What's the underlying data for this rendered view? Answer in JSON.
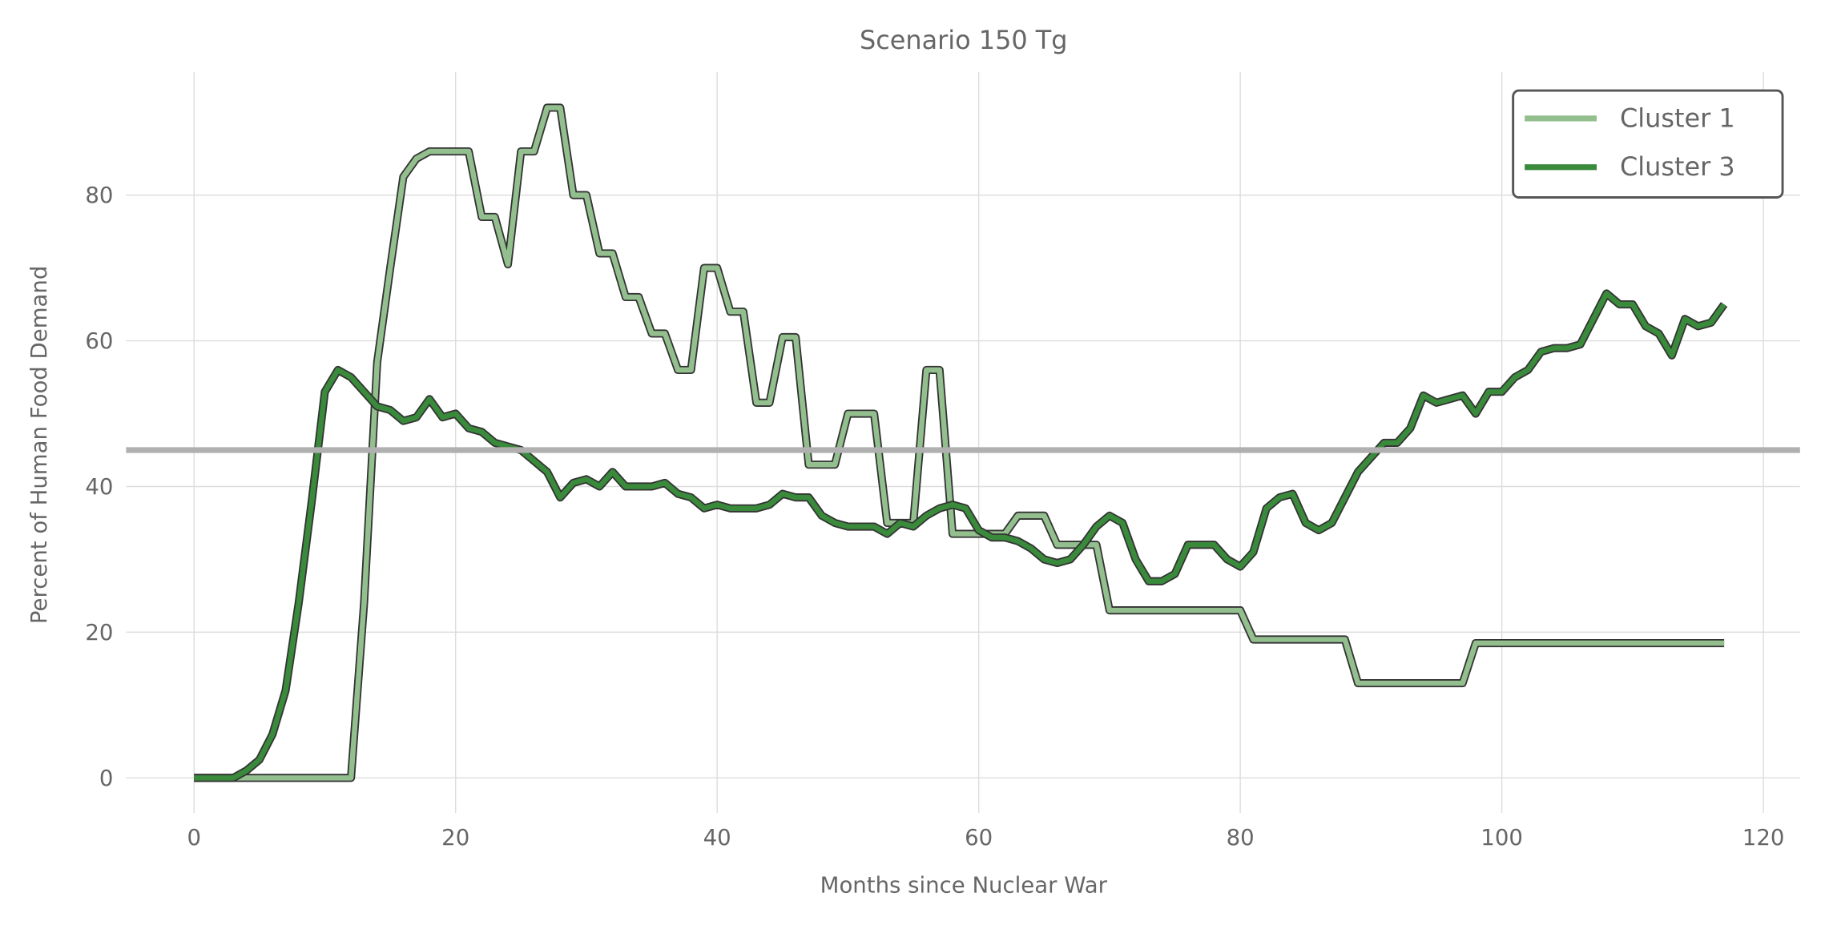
{
  "chart_data": {
    "type": "line",
    "title": "Scenario 150 Tg",
    "x_label": "Months since Nuclear War",
    "y_label": "Percent of Human Food Demand",
    "x": [
      0,
      1,
      2,
      3,
      4,
      5,
      6,
      7,
      8,
      9,
      10,
      11,
      12,
      13,
      14,
      15,
      16,
      17,
      18,
      19,
      20,
      21,
      22,
      23,
      24,
      25,
      26,
      27,
      28,
      29,
      30,
      31,
      32,
      33,
      34,
      35,
      36,
      37,
      38,
      39,
      40,
      41,
      42,
      43,
      44,
      45,
      46,
      47,
      48,
      49,
      50,
      51,
      52,
      53,
      54,
      55,
      56,
      57,
      58,
      59,
      60,
      61,
      62,
      63,
      64,
      65,
      66,
      67,
      68,
      69,
      70,
      71,
      72,
      73,
      74,
      75,
      76,
      77,
      78,
      79,
      80,
      81,
      82,
      83,
      84,
      85,
      86,
      87,
      88,
      89,
      90,
      91,
      92,
      93,
      94,
      95,
      96,
      97,
      98,
      99,
      100,
      101,
      102,
      103,
      104,
      105,
      106,
      107,
      108,
      109,
      110,
      111,
      112,
      113,
      114,
      115,
      116,
      117
    ],
    "series": [
      {
        "name": "Cluster 1",
        "color": "#93bf8e",
        "values": [
          0,
          0,
          0,
          0,
          0,
          0,
          0,
          0,
          0,
          0,
          0,
          0,
          0,
          24,
          57,
          70,
          82.5,
          85,
          86,
          86,
          86,
          86,
          77,
          77,
          70.5,
          86,
          86,
          92,
          92,
          80,
          80,
          72,
          72,
          66,
          66,
          61,
          61,
          56,
          56,
          70,
          70,
          64,
          64,
          51.5,
          51.5,
          60.5,
          60.5,
          43,
          43,
          43,
          50,
          50,
          50,
          35,
          35,
          35,
          56,
          56,
          33.5,
          33.5,
          33.5,
          33.5,
          33.5,
          36,
          36,
          36,
          32,
          32,
          32,
          32,
          23,
          23,
          23,
          23,
          23,
          23,
          23,
          23,
          23,
          23,
          23,
          19,
          19,
          19,
          19,
          19,
          19,
          19,
          19,
          13,
          13,
          13,
          13,
          13,
          13,
          13,
          13,
          13,
          18.5,
          18.5,
          18.5,
          18.5,
          18.5,
          18.5,
          18.5,
          18.5,
          18.5,
          18.5,
          18.5,
          18.5,
          18.5,
          18.5,
          18.5,
          18.5,
          18.5,
          18.5,
          18.5,
          18.5
        ]
      },
      {
        "name": "Cluster 3",
        "color": "#3a8a3c",
        "values": [
          0,
          0,
          0,
          0,
          1,
          2.5,
          6,
          12,
          24,
          38,
          53,
          56,
          55,
          53,
          51,
          50.5,
          49,
          49.5,
          52,
          49.5,
          50,
          48,
          47.5,
          46,
          45.5,
          45,
          43.5,
          42,
          38.5,
          40.5,
          41,
          40,
          42,
          40,
          40,
          40,
          40.5,
          39,
          38.5,
          37,
          37.5,
          37,
          37,
          37,
          37.5,
          39,
          38.5,
          38.5,
          36,
          35,
          34.5,
          34.5,
          34.5,
          33.5,
          35,
          34.5,
          36,
          37,
          37.5,
          37,
          34,
          33,
          33,
          32.5,
          31.5,
          30,
          29.5,
          30,
          32,
          34.5,
          36,
          35,
          30,
          27,
          27,
          28,
          32,
          32,
          32,
          30,
          29,
          31,
          37,
          38.5,
          39,
          35,
          34,
          35,
          38.5,
          42,
          44,
          46,
          46,
          48,
          52.5,
          51.5,
          52,
          52.5,
          50,
          53,
          53,
          55,
          56,
          58.5,
          59,
          59,
          59.5,
          63,
          66.5,
          65,
          65,
          62,
          61,
          58,
          63,
          62,
          62.5,
          65
        ]
      }
    ],
    "hline": 45,
    "hline_color": "#b0b0b0",
    "xlim": [
      -5.2,
      122.8
    ],
    "ylim": [
      -4.8,
      96.9
    ],
    "xticks": [
      0,
      20,
      40,
      60,
      80,
      100,
      120
    ],
    "yticks": [
      0,
      20,
      40,
      60,
      80
    ],
    "grid": true,
    "legend": "upper right"
  }
}
